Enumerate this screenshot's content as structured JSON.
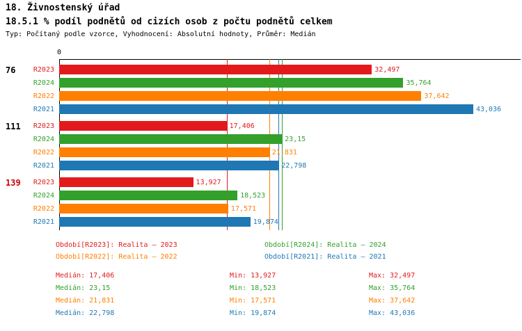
{
  "header": {
    "title": "18. Živnostenský úřad",
    "subtitle": "18.5.1 % podíl podnětů od cizích osob z počtu podnětů celkem",
    "meta": "Typ: Počítaný podle vzorce, Vyhodnocení: Absolutní hodnoty, Průměr: Medián"
  },
  "colors": {
    "R2023": "#e31a1c",
    "R2024": "#33a02c",
    "R2022": "#ff7f00",
    "R2021": "#1f78b4",
    "group_label_default": "#000000",
    "group_label_highlight": "#cc0000",
    "axis": "#000000"
  },
  "chart_data": {
    "type": "bar",
    "orientation": "horizontal",
    "x_axis": {
      "zero_label": "0",
      "min": 0
    },
    "series_order": [
      "R2023",
      "R2024",
      "R2022",
      "R2021"
    ],
    "groups": [
      {
        "label": "76",
        "highlighted": false,
        "bars": [
          {
            "series": "R2023",
            "value": 32.497,
            "label": "32,497"
          },
          {
            "series": "R2024",
            "value": 35.764,
            "label": "35,764"
          },
          {
            "series": "R2022",
            "value": 37.642,
            "label": "37,642"
          },
          {
            "series": "R2021",
            "value": 43.036,
            "label": "43,036"
          }
        ]
      },
      {
        "label": "111",
        "highlighted": false,
        "bars": [
          {
            "series": "R2023",
            "value": 17.406,
            "label": "17,406"
          },
          {
            "series": "R2024",
            "value": 23.15,
            "label": "23,15"
          },
          {
            "series": "R2022",
            "value": 21.831,
            "label": "21,831"
          },
          {
            "series": "R2021",
            "value": 22.798,
            "label": "22,798"
          }
        ]
      },
      {
        "label": "139",
        "highlighted": true,
        "bars": [
          {
            "series": "R2023",
            "value": 13.927,
            "label": "13,927"
          },
          {
            "series": "R2024",
            "value": 18.523,
            "label": "18,523"
          },
          {
            "series": "R2022",
            "value": 17.571,
            "label": "17,571"
          },
          {
            "series": "R2021",
            "value": 19.874,
            "label": "19,874"
          }
        ]
      }
    ],
    "median_lines": [
      {
        "series": "R2023",
        "value": 17.406
      },
      {
        "series": "R2024",
        "value": 23.15
      },
      {
        "series": "R2022",
        "value": 21.831
      },
      {
        "series": "R2021",
        "value": 22.798
      }
    ]
  },
  "legend": {
    "items": [
      {
        "series": "R2023",
        "text": "Období[R2023]: Realita – 2023"
      },
      {
        "series": "R2024",
        "text": "Období[R2024]: Realita – 2024"
      },
      {
        "series": "R2022",
        "text": "Období[R2022]: Realita – 2022"
      },
      {
        "series": "R2021",
        "text": "Období[R2021]: Realita – 2021"
      }
    ]
  },
  "stats": {
    "rows": [
      {
        "series": "R2023",
        "median": "Medián: 17,406",
        "min": "Min: 13,927",
        "max": "Max: 32,497"
      },
      {
        "series": "R2024",
        "median": "Medián: 23,15",
        "min": "Min: 18,523",
        "max": "Max: 35,764"
      },
      {
        "series": "R2022",
        "median": "Medián: 21,831",
        "min": "Min: 17,571",
        "max": "Max: 37,642"
      },
      {
        "series": "R2021",
        "median": "Medián: 22,798",
        "min": "Min: 19,874",
        "max": "Max: 43,036"
      }
    ]
  }
}
